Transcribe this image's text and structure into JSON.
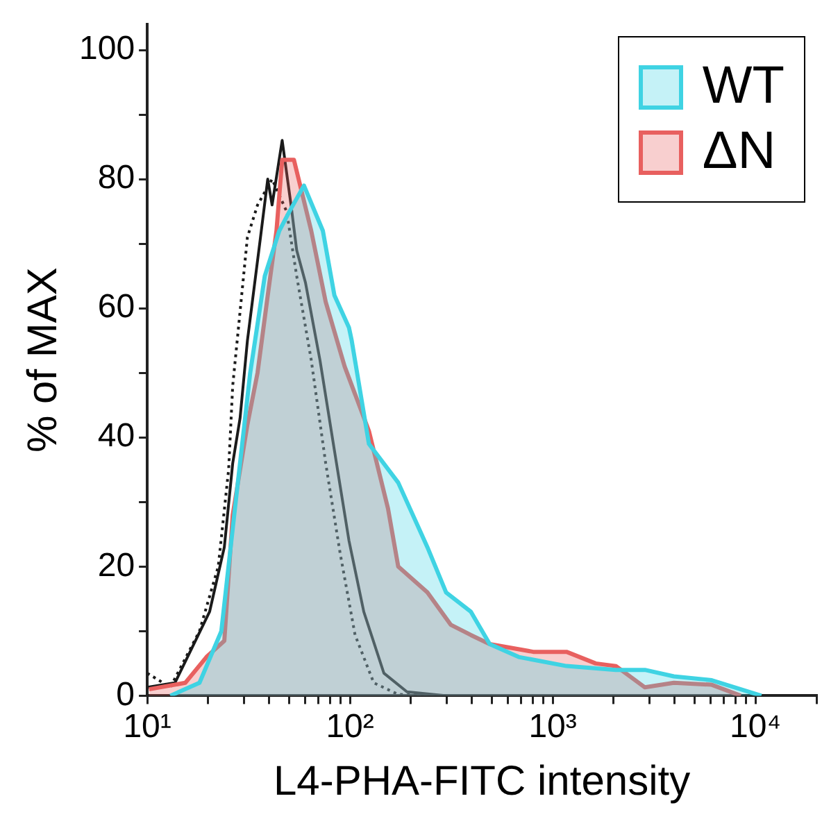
{
  "chart_data": {
    "type": "area",
    "xlabel": "L4-PHA-FITC intensity",
    "ylabel": "% of MAX",
    "log": "x",
    "xlim": [
      10,
      20000
    ],
    "ylim": [
      0,
      104
    ],
    "xticks": [
      {
        "value": 10,
        "label": "10¹"
      },
      {
        "value": 20,
        "label": null
      },
      {
        "value": 30,
        "label": null
      },
      {
        "value": 40,
        "label": null
      },
      {
        "value": 50,
        "label": null
      },
      {
        "value": 60,
        "label": null
      },
      {
        "value": 70,
        "label": null
      },
      {
        "value": 80,
        "label": null
      },
      {
        "value": 90,
        "label": null
      },
      {
        "value": 100,
        "label": "10²"
      },
      {
        "value": 200,
        "label": null
      },
      {
        "value": 300,
        "label": null
      },
      {
        "value": 400,
        "label": null
      },
      {
        "value": 500,
        "label": null
      },
      {
        "value": 600,
        "label": null
      },
      {
        "value": 700,
        "label": null
      },
      {
        "value": 800,
        "label": null
      },
      {
        "value": 900,
        "label": null
      },
      {
        "value": 1000,
        "label": "10³"
      },
      {
        "value": 2000,
        "label": null
      },
      {
        "value": 3000,
        "label": null
      },
      {
        "value": 4000,
        "label": null
      },
      {
        "value": 5000,
        "label": null
      },
      {
        "value": 6000,
        "label": null
      },
      {
        "value": 7000,
        "label": null
      },
      {
        "value": 8000,
        "label": null
      },
      {
        "value": 9000,
        "label": null
      },
      {
        "value": 10000,
        "label": "10⁴"
      },
      {
        "value": 20000,
        "label": null
      }
    ],
    "yticks": [
      0,
      {
        "value": 10,
        "label": null
      },
      20,
      {
        "value": 30,
        "label": null
      },
      40,
      {
        "value": 50,
        "label": null
      },
      60,
      {
        "value": 70,
        "label": null
      },
      80,
      {
        "value": 90,
        "label": null
      },
      100
    ],
    "grid": false,
    "legend": "top right",
    "marker": "none",
    "series": [
      {
        "name": "WT",
        "color": "#3fd3e3",
        "x": [
          13,
          18.1,
          23.2,
          27.3,
          32.2,
          38,
          44.8,
          50.3,
          59.3,
          73.5,
          83.8,
          98.9,
          102,
          124,
          173,
          241,
          298,
          395,
          489,
          680,
          1170,
          2050,
          2850,
          3960,
          6090,
          8470,
          10700
        ],
        "values": [
          0,
          2,
          10,
          30,
          50,
          65,
          72,
          75,
          79,
          72,
          62,
          57,
          55,
          39,
          33,
          23,
          16,
          13,
          8,
          6,
          4.6,
          4,
          4,
          3,
          2.4,
          1,
          0
        ]
      },
      {
        "name": "ΔN",
        "color": "#e8605f",
        "x": [
          10.2,
          15.4,
          19.6,
          24,
          26.4,
          31.2,
          35,
          39.3,
          43.4,
          46.3,
          52.9,
          64.4,
          75.9,
          94.1,
          124,
          154,
          173,
          241,
          314,
          395,
          489,
          802,
          1170,
          1630,
          2050,
          2850,
          3960,
          6090,
          8470
        ],
        "values": [
          1,
          2,
          6,
          8.5,
          28,
          42,
          50,
          62,
          72,
          83,
          83,
          72,
          61,
          51,
          41,
          29,
          20,
          16,
          11,
          9.4,
          8,
          6.8,
          6.8,
          5,
          4.6,
          1.3,
          2,
          1.7,
          0
        ]
      },
      {
        "type": "line",
        "color": "#1a1a1a",
        "x": [
          10,
          13.7,
          20.3,
          24,
          26.4,
          28.7,
          31.2,
          36.2,
          39.3,
          41.3,
          46.3,
          51.2,
          54.6,
          60.3,
          71.1,
          83.8,
          98.9,
          117,
          147,
          191,
          300
        ],
        "values": [
          1.3,
          2,
          13,
          23,
          36,
          43,
          55,
          71,
          80,
          76,
          86,
          76,
          69,
          64,
          52,
          38,
          24,
          13,
          3.5,
          0.6,
          0
        ]
      },
      {
        "type": "line",
        "line_style": "dotted",
        "color": "#1a1a1a",
        "x": [
          10,
          13,
          18.1,
          22.4,
          25.2,
          26.4,
          31.2,
          35,
          41.3,
          48.7,
          54.6,
          64.4,
          75.9,
          89.5,
          106,
          131,
          173,
          300
        ],
        "values": [
          3.5,
          1.3,
          10,
          20,
          35,
          48,
          71,
          76,
          80,
          75,
          65,
          52,
          36,
          22,
          9.4,
          2,
          0.2,
          0
        ]
      }
    ]
  }
}
